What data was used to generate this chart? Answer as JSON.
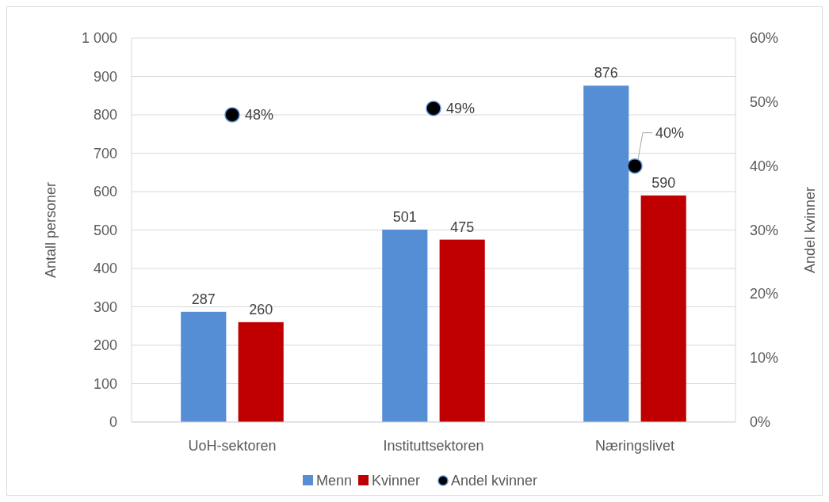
{
  "chart_data": {
    "type": "bar",
    "categories": [
      "UoH-sektoren",
      "Instituttsektoren",
      "Næringslivet"
    ],
    "ylabel": "Antall personer",
    "y2label": "Andel kvinner",
    "ylim": [
      0,
      1000
    ],
    "yticks": [
      0,
      100,
      200,
      300,
      400,
      500,
      600,
      700,
      800,
      900,
      {
        "value": 1000,
        "label": "1 000"
      }
    ],
    "y2lim": [
      0,
      60
    ],
    "y2ticks": [
      {
        "value": 0,
        "label": "0%"
      },
      {
        "value": 10,
        "label": "10%"
      },
      {
        "value": 20,
        "label": "20%"
      },
      {
        "value": 30,
        "label": "30%"
      },
      {
        "value": 40,
        "label": "40%"
      },
      {
        "value": 50,
        "label": "50%"
      },
      {
        "value": 60,
        "label": "60%"
      }
    ],
    "grid": "y",
    "legend": "bottom",
    "series": [
      {
        "name": "Menn",
        "color": "#558ed5",
        "values": [
          287,
          501,
          876
        ],
        "value_labels": [
          "287",
          "501",
          "876"
        ]
      },
      {
        "name": "Kvinner",
        "color": "#c00000",
        "values": [
          260,
          475,
          590
        ],
        "value_labels": [
          "260",
          "475",
          "590"
        ]
      },
      {
        "name": "Andel kvinner",
        "type": "scatter",
        "axis": "y2",
        "marker": "circle",
        "color": "#000000",
        "x": [
          "UoH-sektoren",
          "Instituttsektoren",
          "Næringslivet"
        ],
        "values": [
          48,
          49,
          40
        ],
        "value_labels": [
          "48%",
          "49%",
          "40%"
        ]
      }
    ]
  }
}
